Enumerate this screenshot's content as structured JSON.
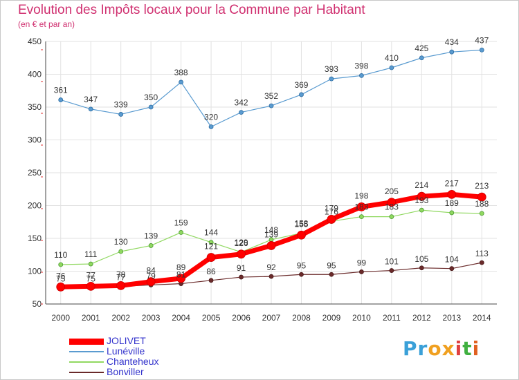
{
  "title": "Evolution des Impôts locaux pour la Commune par Habitant",
  "subtitle": "(en € et par an)",
  "logo": {
    "text": "Proxiti",
    "letter_colors": [
      "#3aa0d8",
      "#3aa0d8",
      "#f0a020",
      "#f0a020",
      "#e04040",
      "#40b040",
      "#e06020"
    ]
  },
  "chart_data": {
    "type": "line",
    "title": "Evolution des Impôts locaux pour la Commune par Habitant",
    "subtitle": "(en € et par an)",
    "xlabel": "",
    "ylabel": "",
    "x": [
      "2000",
      "2001",
      "2002",
      "2003",
      "2004",
      "2005",
      "2006",
      "2007",
      "2008",
      "2009",
      "2010",
      "2011",
      "2012",
      "2013",
      "2014"
    ],
    "ylim": [
      50,
      450
    ],
    "yticks": [
      "50",
      "100",
      "150",
      "200",
      "250",
      "300",
      "350",
      "400",
      "450"
    ],
    "grid": true,
    "legend_position": "bottom-left",
    "series": [
      {
        "name": "Lunéville",
        "color": "#5a9bd0",
        "values": [
          361,
          347,
          339,
          350,
          388,
          320,
          342,
          352,
          369,
          393,
          398,
          410,
          425,
          434,
          437
        ]
      },
      {
        "name": "Chanteheux",
        "color": "#90d860",
        "values": [
          110,
          111,
          130,
          139,
          159,
          144,
          129,
          148,
          158,
          176,
          183,
          183,
          193,
          189,
          188
        ]
      },
      {
        "name": "Bonviller",
        "color": "#6a2a2a",
        "values": [
          75,
          75,
          77,
          79,
          81,
          86,
          91,
          92,
          95,
          95,
          99,
          101,
          105,
          104,
          113
        ]
      },
      {
        "name": "JOLIVET",
        "color": "#ff0000",
        "values": [
          76,
          77,
          78,
          84,
          89,
          121,
          126,
          139,
          155,
          179,
          198,
          205,
          214,
          217,
          213
        ]
      }
    ],
    "legend": [
      "JOLIVET",
      "Lunéville",
      "Chanteheux",
      "Bonviller"
    ]
  }
}
